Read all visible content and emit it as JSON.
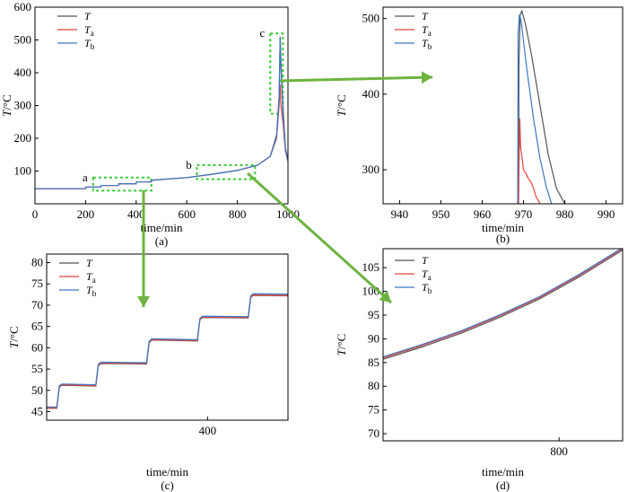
{
  "colors": {
    "T": "#555555",
    "Ta": "#e8413a",
    "Tb": "#3a78c9",
    "highlight": "#33cc33",
    "arrow": "#6db33f"
  },
  "chart_data": [
    {
      "id": "a",
      "type": "line",
      "caption": "(a)",
      "xlabel": "time/min",
      "ylabel": "T/°C",
      "xlim": [
        0,
        1000
      ],
      "ylim": [
        0,
        600
      ],
      "xticks": [
        0,
        200,
        400,
        600,
        800,
        1000
      ],
      "yticks": [
        100,
        200,
        300,
        400,
        500,
        600
      ],
      "legend": [
        "T",
        "Ta",
        "Tb"
      ],
      "legend_placement": "top-left",
      "series": [
        {
          "name": "T",
          "x": [
            0,
            200,
            201,
            260,
            261,
            330,
            331,
            400,
            401,
            460,
            461,
            600,
            700,
            800,
            880,
            930,
            955,
            965,
            969,
            972,
            980,
            990,
            1000
          ],
          "y": [
            46,
            46,
            51,
            51,
            56,
            56,
            61,
            61,
            67,
            67,
            72,
            80,
            90,
            102,
            118,
            145,
            210,
            330,
            510,
            440,
            300,
            170,
            135
          ]
        },
        {
          "name": "Ta",
          "x": [
            0,
            200,
            201,
            260,
            261,
            330,
            331,
            400,
            401,
            460,
            461,
            600,
            700,
            800,
            880,
            930,
            955,
            965,
            969,
            972,
            980,
            990,
            1000
          ],
          "y": [
            46,
            46,
            51,
            51,
            56,
            56,
            61,
            61,
            67,
            67,
            72,
            80,
            90,
            102,
            118,
            145,
            200,
            300,
            365,
            300,
            250,
            160,
            130
          ]
        },
        {
          "name": "Tb",
          "x": [
            0,
            200,
            201,
            260,
            261,
            330,
            331,
            400,
            401,
            460,
            461,
            600,
            700,
            800,
            880,
            930,
            955,
            965,
            969,
            972,
            980,
            990,
            1000
          ],
          "y": [
            46,
            46,
            51,
            51,
            56,
            56,
            61,
            61,
            67,
            67,
            72,
            80,
            90,
            102,
            118,
            145,
            205,
            320,
            505,
            420,
            280,
            165,
            132
          ]
        }
      ],
      "annotations": [
        {
          "label": "a",
          "x": [
            230,
            460
          ],
          "y": [
            40,
            80
          ]
        },
        {
          "label": "b",
          "x": [
            640,
            870
          ],
          "y": [
            75,
            118
          ]
        },
        {
          "label": "c",
          "x": [
            930,
            980
          ],
          "y": [
            275,
            520
          ]
        }
      ]
    },
    {
      "id": "b",
      "type": "line",
      "caption": "(b)",
      "xlabel": "time/min",
      "ylabel": "T/°C",
      "xlim": [
        936,
        994
      ],
      "ylim": [
        255,
        515
      ],
      "xticks": [
        940,
        950,
        960,
        970,
        980,
        990
      ],
      "yticks": [
        300,
        400,
        500
      ],
      "legend": [
        "T",
        "Ta",
        "Tb"
      ],
      "legend_placement": "top-right",
      "series": [
        {
          "name": "T",
          "x": [
            968.8,
            968.9,
            969.2,
            969.6,
            970.5,
            972,
            974,
            976,
            978,
            980
          ],
          "y": [
            255,
            440,
            505,
            510,
            492,
            450,
            385,
            320,
            275,
            255
          ]
        },
        {
          "name": "Ta",
          "x": [
            968.8,
            968.9,
            969.1,
            969.3,
            969.6,
            970,
            970.6,
            971.2,
            971.8,
            972.4,
            973,
            974
          ],
          "y": [
            255,
            300,
            368,
            330,
            318,
            300,
            295,
            288,
            284,
            276,
            265,
            255
          ]
        },
        {
          "name": "Tb",
          "x": [
            968.6,
            968.7,
            969,
            969.4,
            970,
            971,
            972.5,
            974,
            975.5,
            976.8
          ],
          "y": [
            255,
            480,
            505,
            498,
            470,
            425,
            365,
            315,
            278,
            255
          ]
        }
      ]
    },
    {
      "id": "c",
      "type": "line",
      "caption": "(c)",
      "xlabel": "time/min",
      "ylabel": "T/°C",
      "xlim": [
        210,
        495
      ],
      "ylim": [
        43,
        82
      ],
      "xticks": [
        400
      ],
      "yticks": [
        45,
        50,
        55,
        60,
        65,
        70,
        75,
        80
      ],
      "legend": [
        "T",
        "Ta",
        "Tb"
      ],
      "legend_placement": "top-left",
      "series": [
        {
          "name": "T",
          "x": [
            210,
            222,
            225,
            228,
            268,
            271,
            274,
            328,
            331,
            334,
            388,
            391,
            394,
            448,
            451,
            454,
            495
          ],
          "y": [
            45.8,
            45.8,
            50.8,
            51.2,
            51.0,
            55.8,
            56.3,
            56.2,
            61.2,
            61.8,
            61.6,
            66.6,
            67.1,
            67.0,
            71.8,
            72.3,
            72.2
          ]
        },
        {
          "name": "Ta",
          "x": [
            210,
            222,
            225,
            228,
            268,
            271,
            274,
            328,
            331,
            334,
            388,
            391,
            394,
            448,
            451,
            454,
            495
          ],
          "y": [
            45.9,
            45.9,
            50.9,
            51.3,
            51.1,
            55.9,
            56.4,
            56.3,
            61.3,
            61.9,
            61.7,
            66.7,
            67.2,
            67.1,
            71.9,
            72.4,
            72.3
          ]
        },
        {
          "name": "Tb",
          "x": [
            210,
            222,
            225,
            228,
            268,
            271,
            274,
            328,
            331,
            334,
            388,
            391,
            394,
            448,
            451,
            454,
            495
          ],
          "y": [
            46.1,
            46.1,
            51.1,
            51.5,
            51.3,
            56.1,
            56.6,
            56.5,
            61.5,
            62.1,
            61.9,
            66.9,
            67.4,
            67.3,
            72.2,
            72.7,
            72.6
          ]
        }
      ]
    },
    {
      "id": "d",
      "type": "line",
      "caption": "(d)",
      "xlabel": "time/min",
      "ylabel": "T/°C",
      "xlim": [
        620,
        865
      ],
      "ylim": [
        68.5,
        109
      ],
      "xticks": [
        800
      ],
      "yticks": [
        70,
        75,
        80,
        85,
        90,
        95,
        100,
        105
      ],
      "legend": [
        "T",
        "Ta",
        "Tb"
      ],
      "legend_placement": "top-left",
      "series": [
        {
          "name": "T",
          "x": [
            620,
            660,
            700,
            740,
            780,
            820,
            865
          ],
          "y": [
            85.7,
            88.3,
            91.2,
            94.6,
            98.4,
            103.0,
            108.7
          ]
        },
        {
          "name": "Ta",
          "x": [
            620,
            660,
            700,
            740,
            780,
            820,
            865
          ],
          "y": [
            86.0,
            88.6,
            91.5,
            94.9,
            98.7,
            103.3,
            109.0
          ]
        },
        {
          "name": "Tb",
          "x": [
            620,
            660,
            700,
            740,
            780,
            820,
            865
          ],
          "y": [
            86.2,
            88.8,
            91.7,
            95.1,
            98.9,
            103.5,
            109.2
          ]
        }
      ]
    }
  ]
}
